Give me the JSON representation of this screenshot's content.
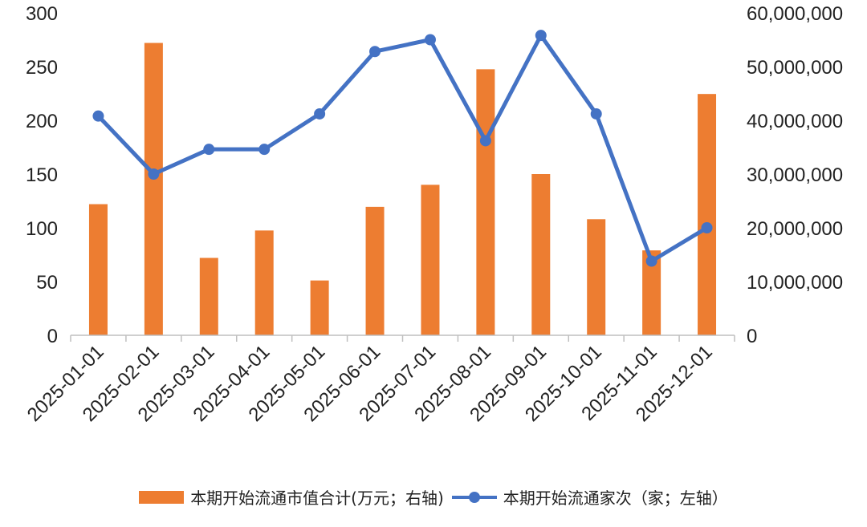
{
  "chart_data": {
    "type": "bar+line",
    "categories": [
      "2025-01-01",
      "2025-02-01",
      "2025-03-01",
      "2025-04-01",
      "2025-05-01",
      "2025-06-01",
      "2025-07-01",
      "2025-08-01",
      "2025-09-01",
      "2025-10-01",
      "2025-11-01",
      "2025-12-01"
    ],
    "left_axis": {
      "min": 0,
      "max": 300,
      "ticks": [
        "0",
        "50",
        "100",
        "150",
        "200",
        "250",
        "300"
      ]
    },
    "right_axis": {
      "min": 0,
      "max": 60000000,
      "ticks": [
        "0",
        "10,000,000",
        "20,000,000",
        "30,000,000",
        "40,000,000",
        "50,000,000",
        "60,000,000"
      ]
    },
    "series": [
      {
        "name": "本期开始流通市值合计(万元；右轴)",
        "type": "bar",
        "axis": "right",
        "color": "#ED7D31",
        "values": [
          24400000,
          54400000,
          14400000,
          19500000,
          10200000,
          23900000,
          28000000,
          49500000,
          30000000,
          21600000,
          15800000,
          44900000
        ]
      },
      {
        "name": "本期开始流通家次（家；左轴）",
        "type": "line",
        "axis": "left",
        "color": "#4472C4",
        "values": [
          204,
          150,
          173,
          173,
          206,
          264,
          275,
          181,
          279,
          206,
          69,
          100
        ]
      }
    ],
    "grid": false,
    "legend": "bottom"
  }
}
